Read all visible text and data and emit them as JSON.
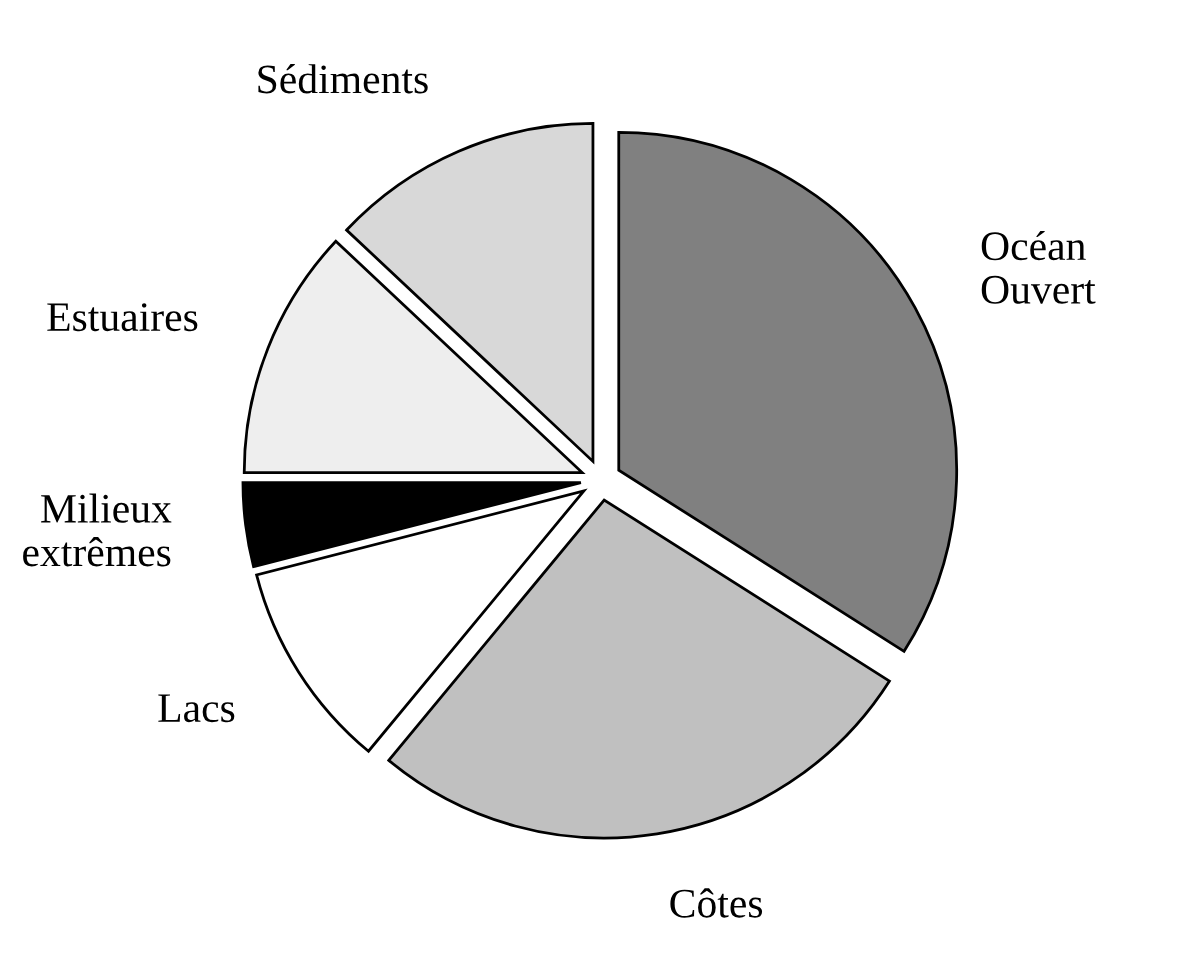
{
  "chart_data": {
    "type": "pie",
    "categories": [
      "Océan Ouvert",
      "Côtes",
      "Lacs",
      "Milieux extrêmes",
      "Estuaires",
      "Sédiments"
    ],
    "values": [
      34,
      27,
      10,
      4,
      12,
      13
    ],
    "colors": [
      "#808080",
      "#c0c0c0",
      "#ffffff",
      "#000000",
      "#eeeeee",
      "#d8d8d8"
    ],
    "legend": false
  }
}
